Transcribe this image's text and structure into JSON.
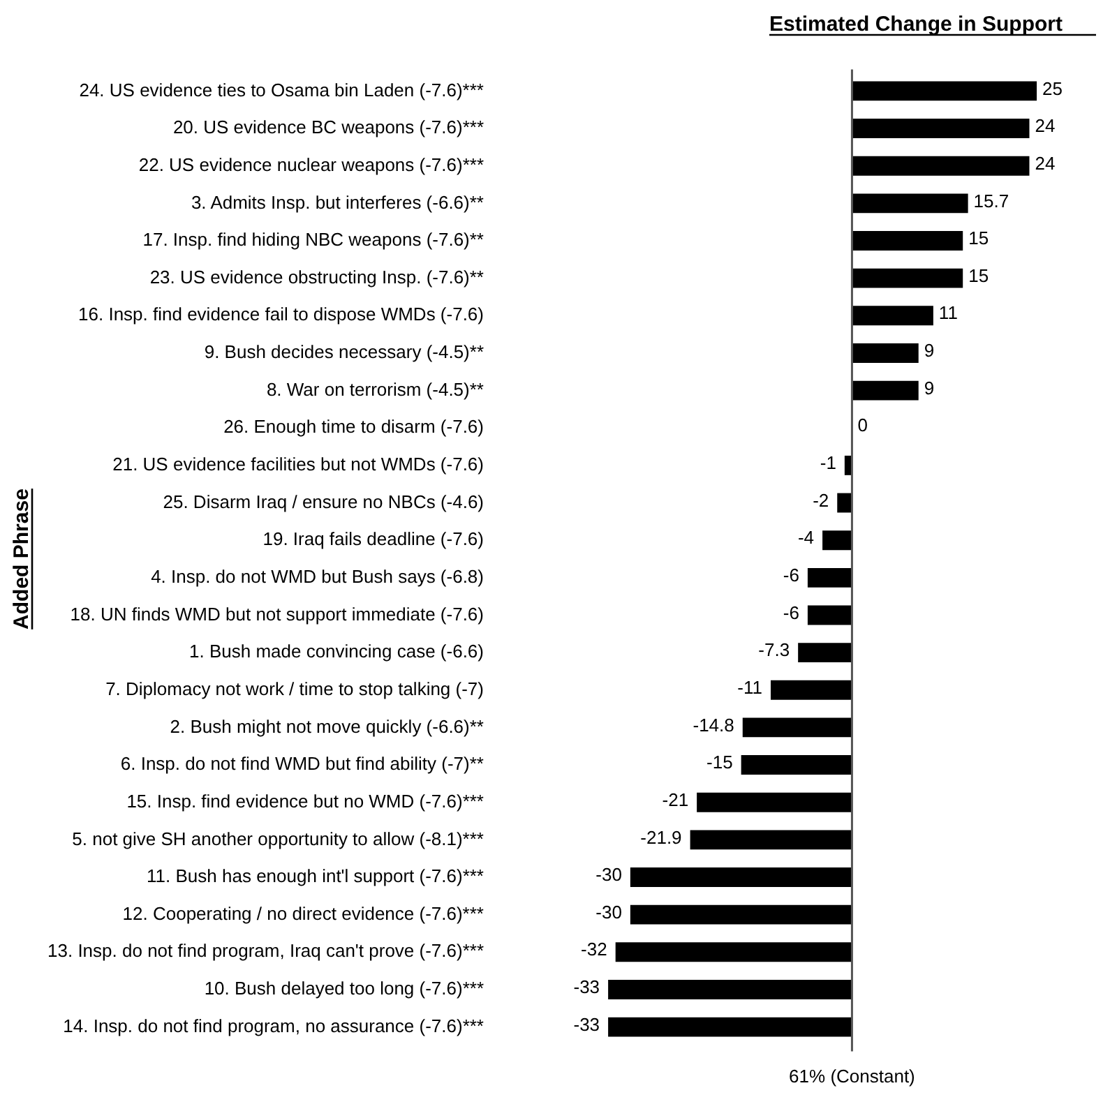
{
  "chart_data": {
    "type": "bar",
    "orientation": "horizontal",
    "title": "Estimated Change in Support",
    "ylabel": "Added Phrase",
    "categories": [
      "24. US evidence ties to Osama bin Laden (-7.6)***",
      "20. US evidence BC weapons (-7.6)***",
      "22. US evidence nuclear weapons (-7.6)***",
      "3. Admits Insp. but interferes (-6.6)**",
      "17. Insp. find hiding NBC weapons (-7.6)**",
      "23. US evidence obstructing Insp. (-7.6)**",
      "16. Insp. find evidence fail to dispose WMDs (-7.6)",
      "9. Bush decides necessary (-4.5)**",
      "8. War on terrorism (-4.5)**",
      "26. Enough time to disarm (-7.6)",
      "21. US evidence facilities but not WMDs (-7.6)",
      "25. Disarm Iraq / ensure no NBCs (-4.6)",
      "19. Iraq fails deadline (-7.6)",
      "4. Insp. do not WMD but Bush says (-6.8)",
      "18. UN finds WMD but not support immediate (-7.6)",
      "1. Bush made convincing case (-6.6)",
      "7. Diplomacy not work / time to stop talking (-7)",
      "2. Bush might not move quickly (-6.6)**",
      "6. Insp. do not find WMD but find ability (-7)**",
      "15. Insp. find evidence but no WMD (-7.6)***",
      "5. not give SH another opportunity to allow (-8.1)***",
      "11. Bush has enough int'l support (-7.6)***",
      "12. Cooperating / no direct evidence (-7.6)***",
      "13. Insp. do not find program, Iraq can't prove (-7.6)***",
      "10. Bush delayed too long (-7.6)***",
      "14. Insp. do not find program, no assurance (-7.6)***"
    ],
    "values": [
      25,
      24,
      24,
      15.7,
      15,
      15,
      11,
      9,
      9,
      0,
      -1,
      -2,
      -4,
      -6,
      -6,
      -7.3,
      -11,
      -14.8,
      -15,
      -21,
      -21.9,
      -30,
      -30,
      -32,
      -33,
      -33
    ],
    "color": "#000000",
    "data_labels": true,
    "ref_lines": [
      {
        "axis": "x",
        "value": 0,
        "label": "61% (Constant)",
        "color": "#555555"
      }
    ]
  }
}
